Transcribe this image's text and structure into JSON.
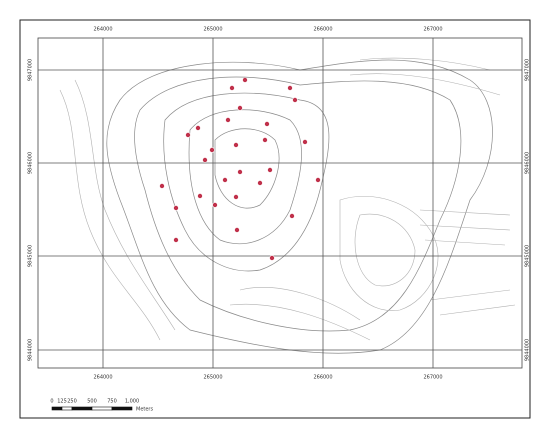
{
  "map": {
    "x_labels": [
      "264000",
      "265000",
      "266000",
      "267000"
    ],
    "y_labels": [
      "9847000",
      "9846000",
      "9845000",
      "9844000"
    ],
    "scale_bar": {
      "labels": [
        "0",
        "125",
        "250",
        "500",
        "750",
        "1,000"
      ],
      "unit": "Meters"
    }
  }
}
